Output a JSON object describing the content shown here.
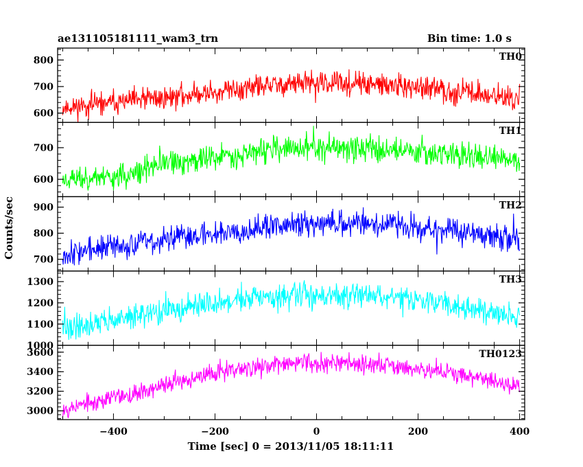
{
  "header": {
    "title": "ae131105181111_wam3_trn",
    "bin_time": "Bin time: 1.0 s"
  },
  "chart_data": {
    "type": "line",
    "xlabel": "Time [sec] 0 = 2013/11/05 18:11:11",
    "ylabel": "Counts/sec",
    "xlim": [
      -510,
      410
    ],
    "x_ticks": [
      -400,
      -200,
      0,
      200,
      400
    ],
    "x_tick_labels": [
      "−400",
      "−200",
      "0",
      "200",
      "400"
    ],
    "x_range_data": [
      -500,
      400
    ],
    "bin_time_s": 1.0,
    "grid": false,
    "panels": [
      {
        "name": "TH0",
        "color": "#ff0000",
        "ylim": [
          565,
          845
        ],
        "y_ticks": [
          600,
          700,
          800
        ],
        "y_tick_labels": [
          "600",
          "700",
          "800"
        ],
        "trend": {
          "x": [
            -500,
            -300,
            -150,
            -50,
            50,
            150,
            300,
            400
          ],
          "y": [
            620,
            658,
            690,
            712,
            712,
            702,
            678,
            650
          ]
        },
        "noise_amplitude": 38,
        "seed": 11
      },
      {
        "name": "TH1",
        "color": "#00ff00",
        "ylim": [
          545,
          780
        ],
        "y_ticks": [
          600,
          700
        ],
        "y_tick_labels": [
          "600",
          "700"
        ],
        "trend": {
          "x": [
            -500,
            -350,
            -330,
            -200,
            -100,
            0,
            100,
            200,
            300,
            400
          ],
          "y": [
            600,
            615,
            640,
            670,
            692,
            700,
            698,
            690,
            675,
            655
          ]
        },
        "noise_amplitude": 35,
        "seed": 23
      },
      {
        "name": "TH2",
        "color": "#0000ff",
        "ylim": [
          655,
          940
        ],
        "y_ticks": [
          700,
          800,
          900
        ],
        "y_tick_labels": [
          "700",
          "800",
          "900"
        ],
        "trend": {
          "x": [
            -500,
            -300,
            -150,
            0,
            100,
            200,
            300,
            400
          ],
          "y": [
            722,
            775,
            815,
            840,
            840,
            825,
            800,
            770
          ]
        },
        "noise_amplitude": 42,
        "seed": 37
      },
      {
        "name": "TH3",
        "color": "#00ffff",
        "ylim": [
          1000,
          1350
        ],
        "y_ticks": [
          1000,
          1100,
          1200,
          1300
        ],
        "y_tick_labels": [
          "1000",
          "1100",
          "1200",
          "1300"
        ],
        "trend": {
          "x": [
            -500,
            -300,
            -150,
            0,
            100,
            250,
            400
          ],
          "y": [
            1080,
            1160,
            1215,
            1240,
            1235,
            1200,
            1130
          ]
        },
        "noise_amplitude": 50,
        "seed": 41
      },
      {
        "name": "TH0123",
        "color": "#ff00ff",
        "ylim": [
          2910,
          3670
        ],
        "y_ticks": [
          3000,
          3200,
          3400,
          3600
        ],
        "y_tick_labels": [
          "3000",
          "3200",
          "3400",
          "3600"
        ],
        "trend": {
          "x": [
            -500,
            -350,
            -200,
            -50,
            50,
            200,
            300,
            400
          ],
          "y": [
            3020,
            3190,
            3390,
            3490,
            3500,
            3440,
            3360,
            3240
          ]
        },
        "noise_amplitude": 80,
        "seed": 53
      }
    ]
  }
}
